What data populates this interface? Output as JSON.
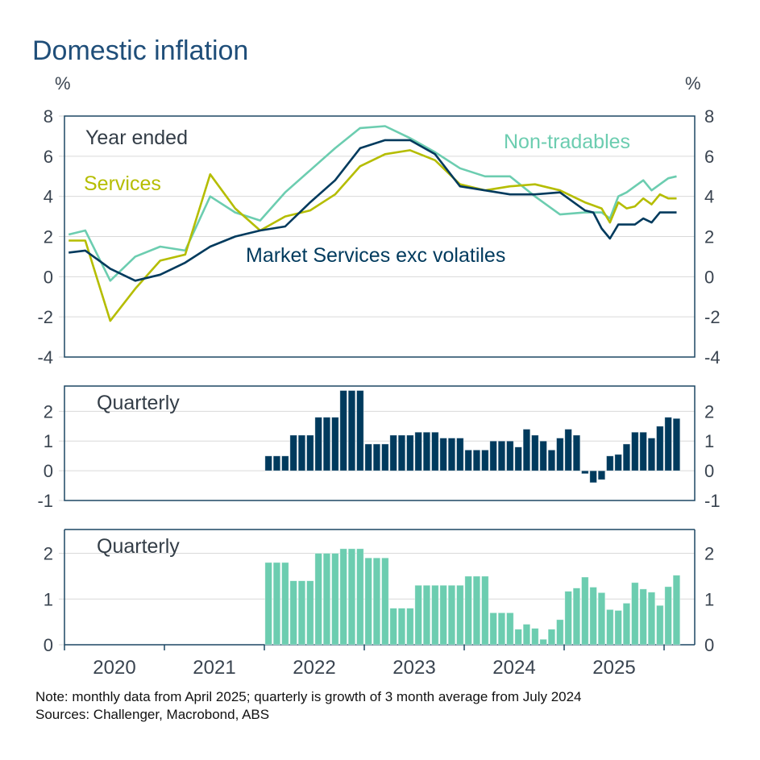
{
  "title": "Domestic inflation",
  "unit_left": "%",
  "unit_right": "%",
  "colors": {
    "title": "#1f4e79",
    "market_services": "#003a5d",
    "services": "#b5bd00",
    "non_tradables": "#6ccdb0",
    "grid": "#d9d9d9",
    "axis": "#1d4763"
  },
  "x_axis": {
    "ticks": [
      "2020",
      "2021",
      "2022",
      "2023",
      "2024",
      "2025"
    ]
  },
  "notes": [
    "Note: monthly data from April 2025; quarterly is growth of 3 month average from July 2024",
    "Sources: Challenger, Macrobond, ABS"
  ],
  "chart_data": [
    {
      "type": "line",
      "panel_label": "Year ended",
      "ylim": [
        -4,
        8
      ],
      "yticks": [
        "8",
        "6",
        "4",
        "2",
        "0",
        "-2",
        "-4"
      ],
      "grid": true,
      "x": [
        "2020-01",
        "2020-03",
        "2020-06",
        "2020-09",
        "2020-12",
        "2021-03",
        "2021-06",
        "2021-09",
        "2021-12",
        "2022-03",
        "2022-06",
        "2022-09",
        "2022-12",
        "2023-03",
        "2023-06",
        "2023-09",
        "2023-12",
        "2024-03",
        "2024-06",
        "2024-09",
        "2024-12",
        "2025-03",
        "2025-04",
        "2025-05",
        "2025-06",
        "2025-07",
        "2025-08",
        "2025-09",
        "2025-10",
        "2025-11",
        "2025-12",
        "2026-01",
        "2026-02"
      ],
      "series": [
        {
          "name": "Non-tradables",
          "color": "#6ccdb0",
          "values": [
            2.1,
            2.3,
            -0.2,
            1.0,
            1.5,
            1.3,
            4.0,
            3.2,
            2.8,
            4.2,
            5.3,
            6.4,
            7.4,
            7.5,
            6.9,
            6.2,
            5.4,
            5.0,
            5.0,
            4.0,
            3.1,
            3.2,
            3.2,
            3.2,
            2.9,
            4.0,
            4.2,
            4.5,
            4.8,
            4.3,
            4.6,
            4.9,
            5.0
          ]
        },
        {
          "name": "Services",
          "color": "#b5bd00",
          "values": [
            1.8,
            1.8,
            -2.2,
            -0.6,
            0.8,
            1.1,
            5.1,
            3.4,
            2.3,
            3.0,
            3.3,
            4.1,
            5.5,
            6.1,
            6.3,
            5.8,
            4.6,
            4.3,
            4.5,
            4.6,
            4.3,
            3.7,
            3.55,
            3.4,
            2.7,
            3.7,
            3.4,
            3.5,
            3.9,
            3.6,
            4.1,
            3.9,
            3.9
          ]
        },
        {
          "name": "Market Services exc volatiles",
          "color": "#003a5d",
          "values": [
            1.2,
            1.3,
            0.4,
            -0.2,
            0.1,
            0.7,
            1.5,
            2.0,
            2.3,
            2.5,
            3.7,
            4.8,
            6.4,
            6.8,
            6.8,
            6.1,
            4.5,
            4.3,
            4.1,
            4.1,
            4.2,
            3.3,
            3.2,
            2.4,
            1.9,
            2.6,
            2.6,
            2.6,
            2.9,
            2.7,
            3.2,
            3.2,
            3.2
          ]
        }
      ]
    },
    {
      "type": "bar",
      "panel_label": "Quarterly",
      "ylim": [
        -1,
        2.85
      ],
      "yticks": [
        "2",
        "1",
        "0",
        "-1"
      ],
      "grid": true,
      "x_start": "2022-01",
      "color": "#003a5d",
      "values": [
        0.5,
        0.5,
        0.5,
        1.2,
        1.2,
        1.2,
        1.8,
        1.8,
        1.8,
        2.7,
        2.7,
        2.7,
        0.9,
        0.9,
        0.9,
        1.2,
        1.2,
        1.2,
        1.3,
        1.3,
        1.3,
        1.1,
        1.1,
        1.1,
        0.7,
        0.7,
        0.7,
        1.0,
        1.0,
        1.0,
        0.8,
        1.4,
        1.2,
        1.0,
        0.7,
        1.1,
        1.4,
        1.2,
        -0.1,
        -0.4,
        -0.3,
        0.5,
        0.55,
        0.9,
        1.3,
        1.3,
        1.1,
        1.5,
        1.8,
        1.76
      ]
    },
    {
      "type": "bar",
      "panel_label": "Quarterly",
      "ylim": [
        0,
        2.52
      ],
      "yticks": [
        "2",
        "1",
        "0"
      ],
      "grid": true,
      "x_start": "2022-01",
      "color": "#6ccdb0",
      "values": [
        1.8,
        1.8,
        1.8,
        1.4,
        1.4,
        1.4,
        2.0,
        2.0,
        2.0,
        2.1,
        2.1,
        2.1,
        1.9,
        1.9,
        1.9,
        0.8,
        0.8,
        0.8,
        1.3,
        1.3,
        1.3,
        1.3,
        1.3,
        1.3,
        1.5,
        1.5,
        1.5,
        0.7,
        0.7,
        0.7,
        0.34,
        0.45,
        0.36,
        0.12,
        0.34,
        0.55,
        1.17,
        1.24,
        1.48,
        1.26,
        1.14,
        0.77,
        0.75,
        0.91,
        1.36,
        1.22,
        1.15,
        0.86,
        1.27,
        1.52
      ]
    }
  ]
}
